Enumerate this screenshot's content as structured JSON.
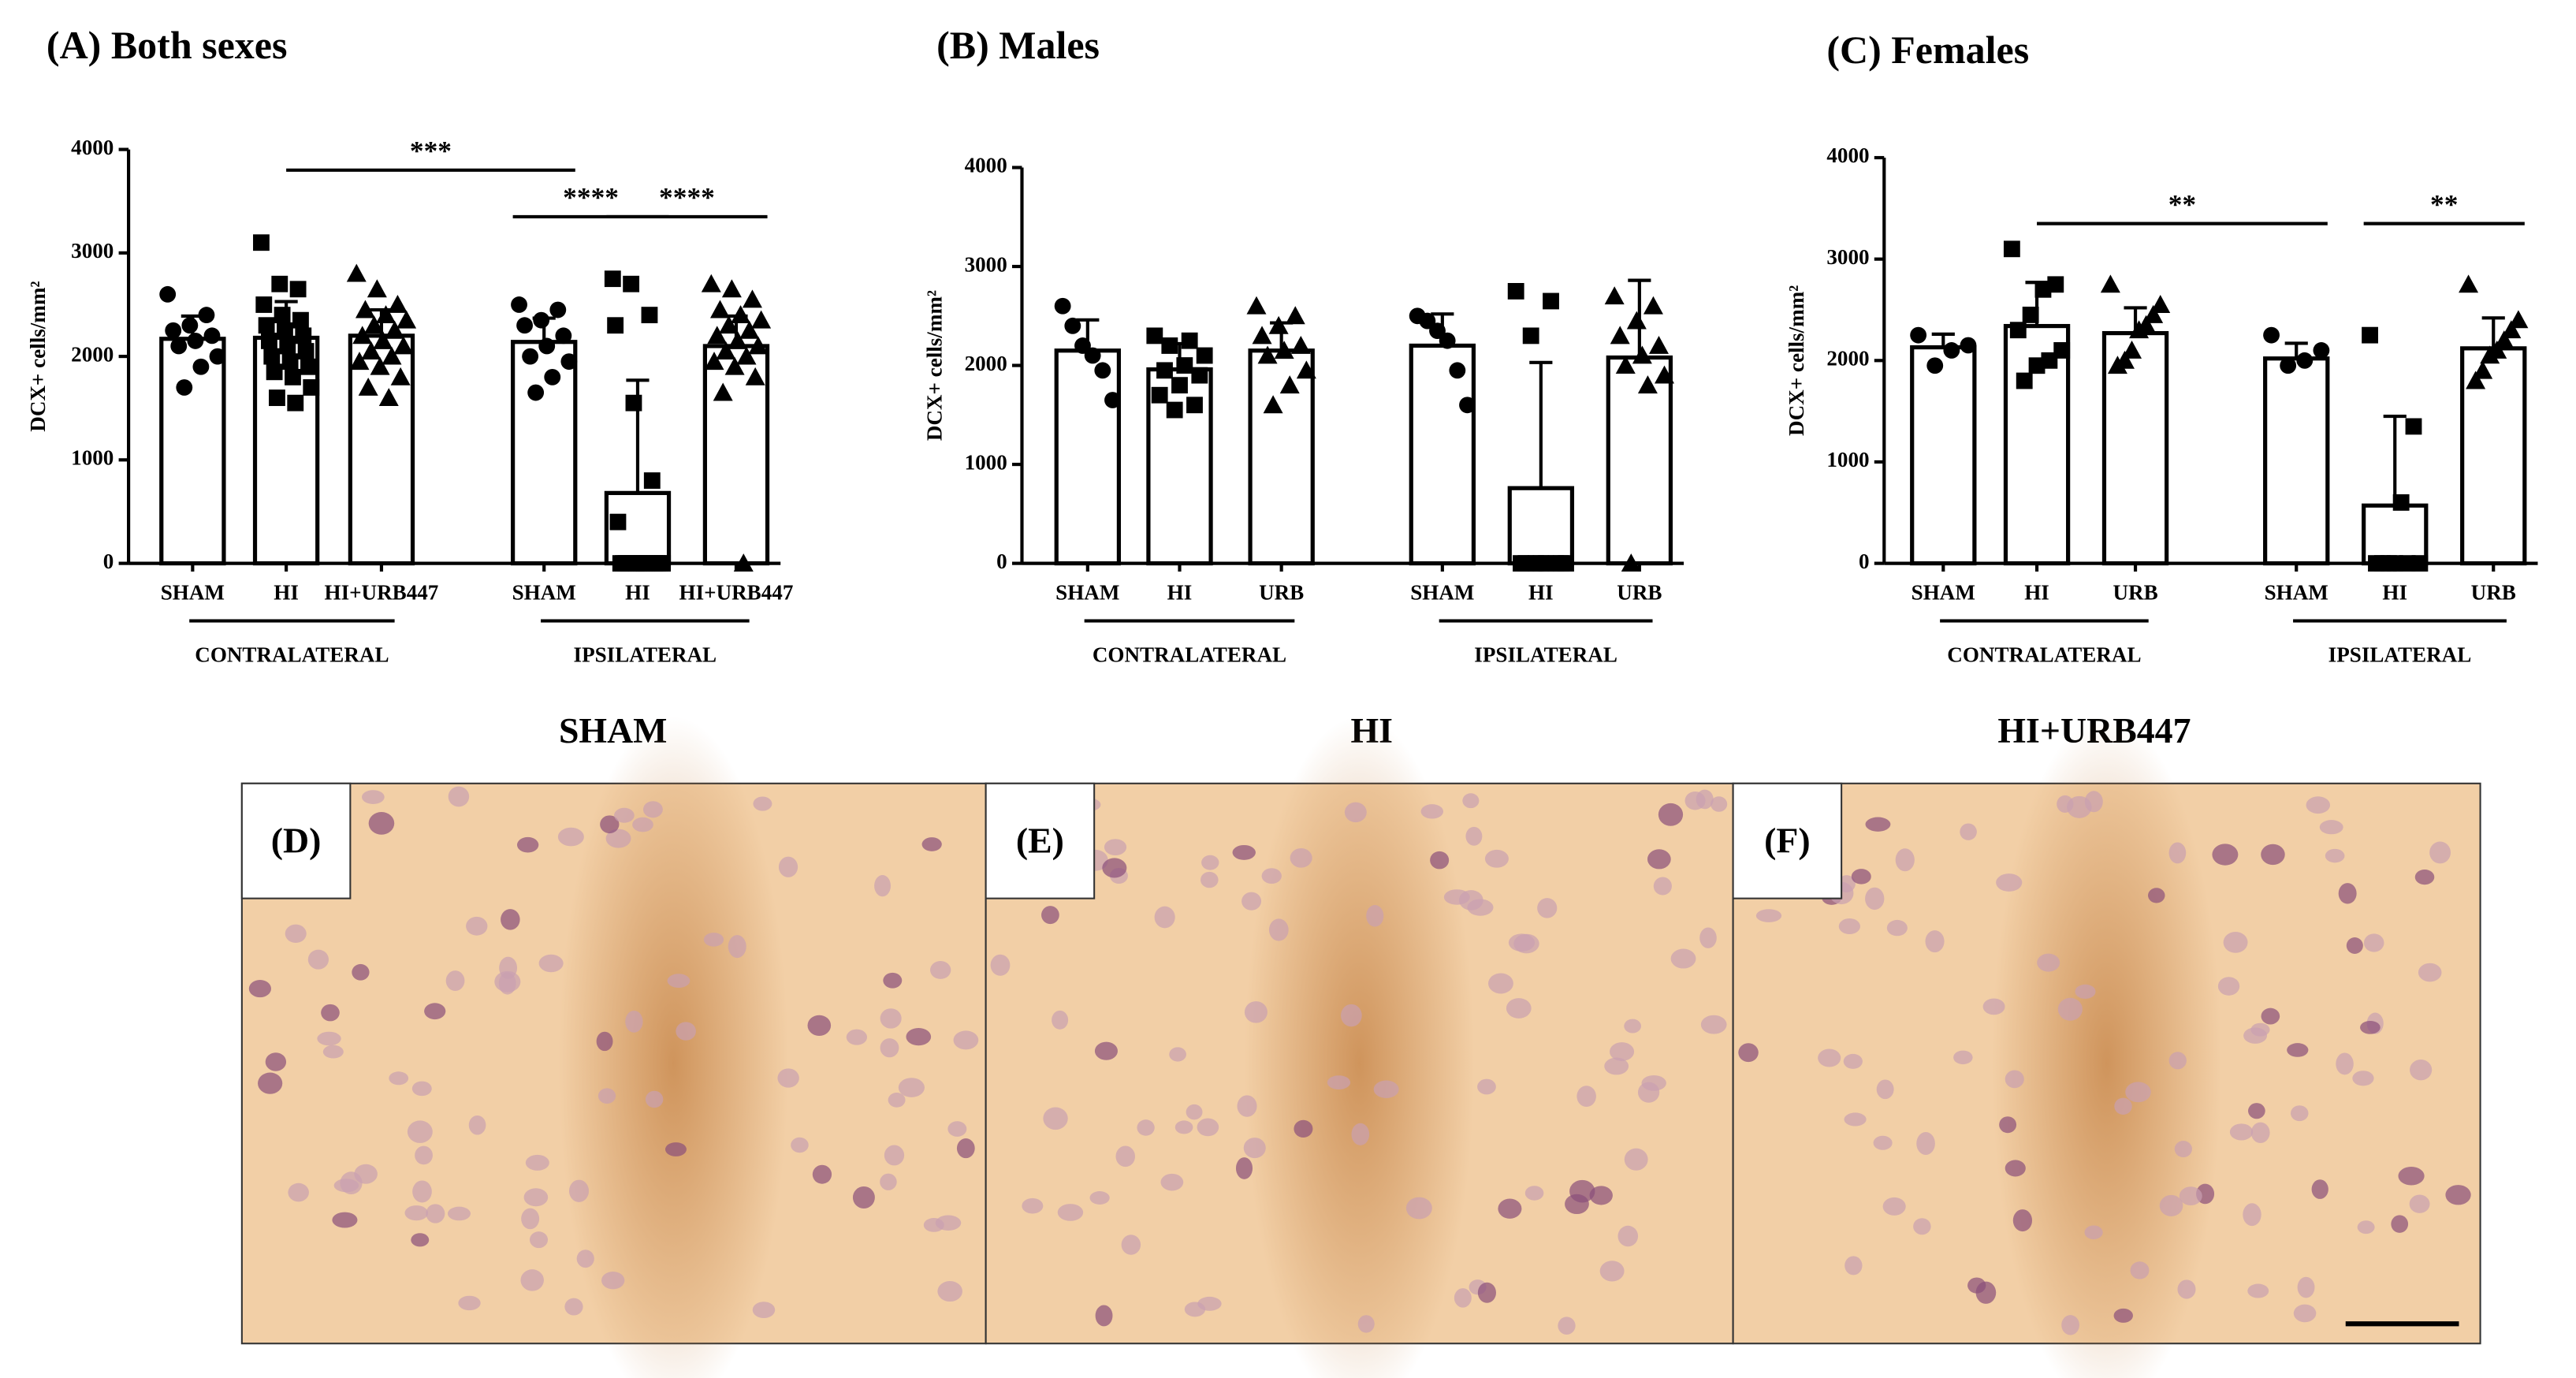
{
  "chart_data": [
    {
      "type": "bar",
      "title": "(A) Both sexes",
      "ylabel": "DCX+ cells/mm²",
      "categories": [
        "SHAM",
        "HI",
        "HI+URB447",
        "SHAM",
        "HI",
        "HI+URB447"
      ],
      "groups": [
        {
          "label": "CONTRALATERAL",
          "from": 0,
          "to": 2
        },
        {
          "label": "IPSILATERAL",
          "from": 3,
          "to": 5
        }
      ],
      "markers": [
        "circle",
        "square",
        "triangle",
        "circle",
        "square",
        "triangle"
      ],
      "ylim": [
        0,
        4000
      ],
      "yticks": [
        0,
        1000,
        2000,
        3000,
        4000
      ],
      "series": [
        {
          "color": "#ffffff",
          "values": [
            2170,
            2180,
            2200,
            2140,
            680,
            2100
          ],
          "errors": [
            220,
            350,
            250,
            230,
            1090,
            290
          ],
          "points": [
            [
              2600,
              2400,
              2300,
              2250,
              2200,
              2150,
              2100,
              2000,
              1900,
              1700
            ],
            [
              3100,
              2700,
              2650,
              2500,
              2400,
              2350,
              2300,
              2250,
              2200,
              2150,
              2100,
              2050,
              2000,
              1950,
              1900,
              1850,
              1800,
              1700,
              1600,
              1550
            ],
            [
              2800,
              2650,
              2500,
              2450,
              2400,
              2350,
              2300,
              2250,
              2200,
              2150,
              2100,
              2050,
              2000,
              1950,
              1900,
              1800,
              1700,
              1600
            ],
            [
              2500,
              2450,
              2350,
              2300,
              2200,
              2100,
              2000,
              1950,
              1800,
              1650
            ],
            [
              2750,
              2700,
              2400,
              2300,
              1550,
              800,
              400,
              0,
              0,
              0,
              0,
              0,
              0,
              0,
              0,
              0,
              0,
              0,
              0,
              0
            ],
            [
              2700,
              2650,
              2550,
              2450,
              2400,
              2350,
              2300,
              2250,
              2200,
              2150,
              2100,
              2050,
              2000,
              1950,
              1900,
              1800,
              1650,
              0
            ]
          ]
        }
      ],
      "annotations": [
        {
          "text": "***",
          "from": 1,
          "to": 3,
          "y": 3800
        },
        {
          "text": "****",
          "from": 3,
          "to": 4,
          "y": 3350
        },
        {
          "text": "****",
          "from": 4,
          "to": 5,
          "y": 3350
        }
      ]
    },
    {
      "type": "bar",
      "title": "(B) Males",
      "ylabel": "DCX+ cells/mm²",
      "categories": [
        "SHAM",
        "HI",
        "URB",
        "SHAM",
        "HI",
        "URB"
      ],
      "groups": [
        {
          "label": "CONTRALATERAL",
          "from": 0,
          "to": 2
        },
        {
          "label": "IPSILATERAL",
          "from": 3,
          "to": 5
        }
      ],
      "markers": [
        "circle",
        "square",
        "triangle",
        "circle",
        "square",
        "triangle"
      ],
      "ylim": [
        0,
        4000
      ],
      "yticks": [
        0,
        1000,
        2000,
        3000,
        4000
      ],
      "series": [
        {
          "color": "#ffffff",
          "values": [
            2150,
            1960,
            2150,
            2200,
            760,
            2080
          ],
          "errors": [
            310,
            260,
            280,
            320,
            1270,
            780
          ],
          "points": [
            [
              2600,
              2400,
              2200,
              2100,
              1950,
              1650
            ],
            [
              2300,
              2250,
              2200,
              2100,
              2000,
              1950,
              1900,
              1800,
              1700,
              1600,
              1550
            ],
            [
              2600,
              2500,
              2400,
              2300,
              2200,
              2150,
              2100,
              1950,
              1800,
              1600
            ],
            [
              2500,
              2450,
              2350,
              2250,
              1950,
              1600
            ],
            [
              2750,
              2650,
              2300,
              0,
              0,
              0,
              0,
              0,
              0,
              0,
              0
            ],
            [
              2700,
              2600,
              2450,
              2300,
              2200,
              2100,
              2000,
              1900,
              1800,
              0
            ]
          ]
        }
      ],
      "annotations": []
    },
    {
      "type": "bar",
      "title": "(C) Females",
      "ylabel": "DCX+ cells/mm²",
      "categories": [
        "SHAM",
        "HI",
        "URB",
        "SHAM",
        "HI",
        "URB"
      ],
      "groups": [
        {
          "label": "CONTRALATERAL",
          "from": 0,
          "to": 2
        },
        {
          "label": "IPSILATERAL",
          "from": 3,
          "to": 5
        }
      ],
      "markers": [
        "circle",
        "square",
        "triangle",
        "circle",
        "square",
        "triangle"
      ],
      "ylim": [
        0,
        4000
      ],
      "yticks": [
        0,
        1000,
        2000,
        3000,
        4000
      ],
      "series": [
        {
          "color": "#ffffff",
          "values": [
            2130,
            2340,
            2270,
            2020,
            570,
            2120
          ],
          "errors": [
            130,
            430,
            250,
            150,
            880,
            300
          ],
          "points": [
            [
              2250,
              2150,
              2100,
              1950
            ],
            [
              3100,
              2750,
              2700,
              2450,
              2300,
              2100,
              2000,
              1950,
              1800
            ],
            [
              2750,
              2550,
              2450,
              2350,
              2300,
              2100,
              2000,
              1950
            ],
            [
              2250,
              2100,
              2000,
              1950
            ],
            [
              2250,
              1350,
              600,
              0,
              0,
              0,
              0,
              0,
              0
            ],
            [
              2750,
              2400,
              2300,
              2200,
              2100,
              2050,
              1900,
              1800
            ]
          ]
        }
      ],
      "annotations": [
        {
          "text": "**",
          "from": 1,
          "to": 3,
          "y": 3350
        },
        {
          "text": "**",
          "from": 4,
          "to": 5,
          "y": 3350
        }
      ]
    }
  ],
  "panels": [
    {
      "header": "SHAM",
      "label": "(D)"
    },
    {
      "header": "HI",
      "label": "(E)"
    },
    {
      "header": "HI+URB447",
      "label": "(F)"
    }
  ]
}
